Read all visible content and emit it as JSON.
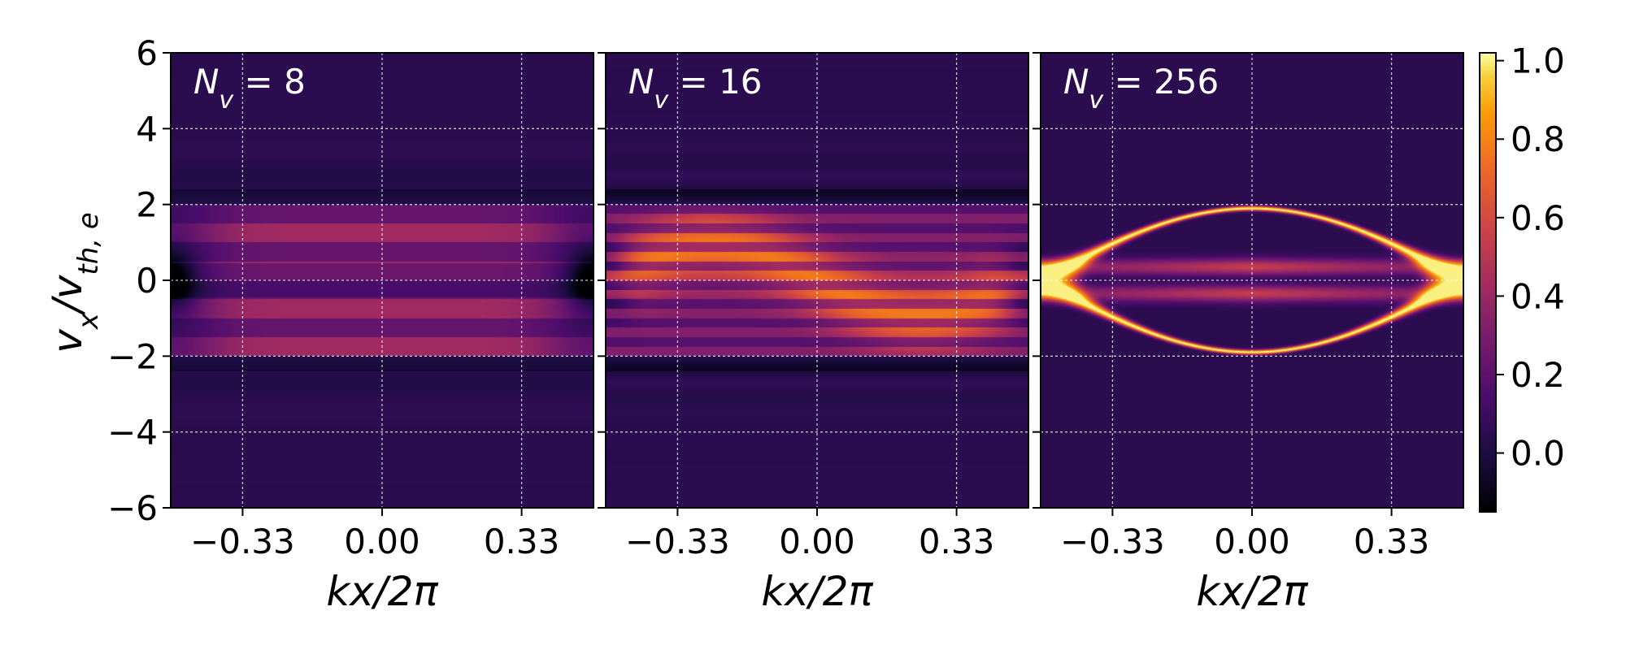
{
  "chart_data": {
    "type": "heatmap",
    "colormap": "inferno",
    "x_range": [
      -0.5,
      0.5
    ],
    "y_range": [
      -6,
      6
    ],
    "x_ticks": [
      -0.33,
      0.0,
      0.33
    ],
    "x_tick_labels": [
      "−0.33",
      "0.00",
      "0.33"
    ],
    "y_ticks": [
      6,
      4,
      2,
      0,
      -2,
      -4,
      -6
    ],
    "y_tick_labels": [
      "6",
      "4",
      "2",
      "0",
      "−2",
      "−4",
      "−6"
    ],
    "xlabel": "kx/2π",
    "ylabel": "v",
    "ylabel_subscript": "x",
    "ylabel_over": "/v",
    "ylabel_over_subscript": "th, e",
    "grid": true,
    "panels": [
      {
        "label": "N",
        "label_sub": "v",
        "label_value": " = 8",
        "n_v": 8
      },
      {
        "label": "N",
        "label_sub": "v",
        "label_value": " = 16",
        "n_v": 16
      },
      {
        "label": "N",
        "label_sub": "v",
        "label_value": " = 256",
        "n_v": 256
      }
    ],
    "colorbar": {
      "range": [
        -0.15,
        1.02
      ],
      "ticks": [
        1.0,
        0.8,
        0.6,
        0.4,
        0.2,
        0.0
      ],
      "tick_labels": [
        "1.0",
        "0.8",
        "0.6",
        "0.4",
        "0.2",
        "0.0"
      ]
    }
  }
}
